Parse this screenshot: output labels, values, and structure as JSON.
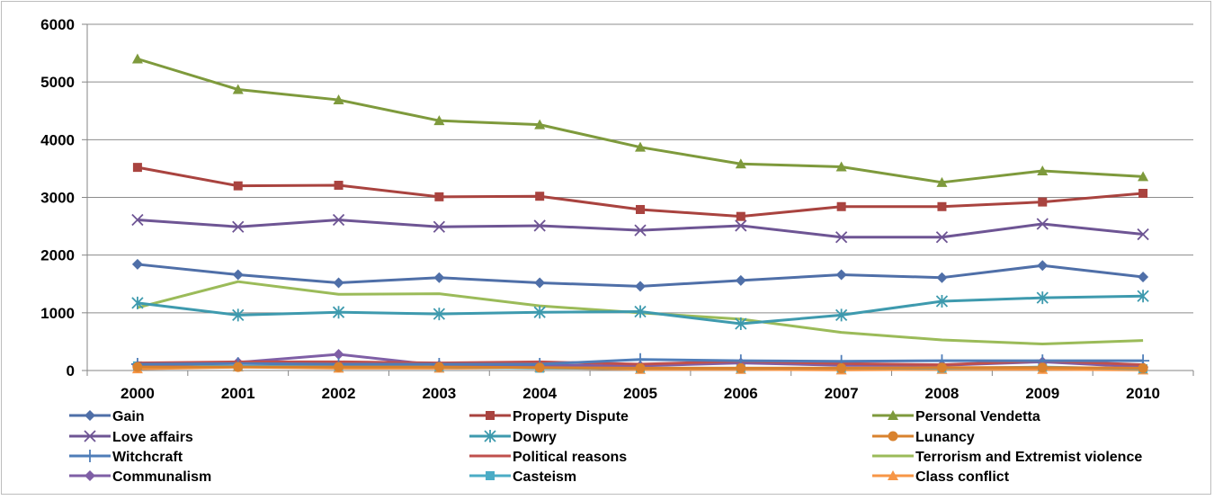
{
  "chart_data": {
    "type": "line",
    "title": "",
    "xlabel": "",
    "ylabel": "",
    "categories": [
      "2000",
      "2001",
      "2002",
      "2003",
      "2004",
      "2005",
      "2006",
      "2007",
      "2008",
      "2009",
      "2010"
    ],
    "ylim": [
      0,
      6000
    ],
    "yticks": [
      0,
      1000,
      2000,
      3000,
      4000,
      5000,
      6000
    ],
    "grid": true,
    "legend_position": "bottom",
    "series": [
      {
        "name": "Gain",
        "color": "#4F6FA8",
        "marker": "diamond",
        "values": [
          1840,
          1660,
          1520,
          1610,
          1520,
          1460,
          1560,
          1660,
          1610,
          1820,
          1620
        ]
      },
      {
        "name": "Property Dispute",
        "color": "#A9433F",
        "marker": "square",
        "values": [
          3520,
          3200,
          3210,
          3010,
          3020,
          2790,
          2670,
          2840,
          2840,
          2920,
          3070
        ]
      },
      {
        "name": "Personal Vendetta",
        "color": "#7E9A3C",
        "marker": "triangle",
        "values": [
          5400,
          4870,
          4690,
          4330,
          4260,
          3870,
          3580,
          3530,
          3260,
          3460,
          3360
        ]
      },
      {
        "name": "Love affairs",
        "color": "#6E5594",
        "marker": "x",
        "values": [
          2610,
          2490,
          2610,
          2490,
          2510,
          2430,
          2510,
          2310,
          2310,
          2540,
          2360
        ]
      },
      {
        "name": "Dowry",
        "color": "#3E9AAE",
        "marker": "star",
        "values": [
          1170,
          960,
          1010,
          980,
          1010,
          1020,
          810,
          960,
          1200,
          1260,
          1290
        ]
      },
      {
        "name": "Lunancy",
        "color": "#D9822E",
        "marker": "circle",
        "values": [
          60,
          60,
          60,
          60,
          50,
          40,
          40,
          40,
          50,
          50,
          40
        ]
      },
      {
        "name": "Witchcraft",
        "color": "#4F7DB8",
        "marker": "plus",
        "values": [
          110,
          120,
          110,
          110,
          110,
          190,
          170,
          160,
          170,
          170,
          170
        ]
      },
      {
        "name": "Political reasons",
        "color": "#C0504D",
        "marker": "none",
        "values": [
          130,
          150,
          150,
          130,
          150,
          110,
          160,
          120,
          100,
          170,
          100
        ]
      },
      {
        "name": "Terrorism and Extremist violence",
        "color": "#9BBB59",
        "marker": "none",
        "values": [
          1090,
          1540,
          1320,
          1330,
          1120,
          1000,
          890,
          660,
          530,
          460,
          520
        ]
      },
      {
        "name": "Communalism",
        "color": "#7F5FA6",
        "marker": "diamond",
        "values": [
          80,
          140,
          280,
          90,
          90,
          80,
          130,
          90,
          90,
          150,
          60
        ]
      },
      {
        "name": "Casteism",
        "color": "#4BACC6",
        "marker": "square",
        "values": [
          80,
          70,
          70,
          60,
          40,
          40,
          40,
          40,
          40,
          60,
          30
        ]
      },
      {
        "name": "Class conflict",
        "color": "#F79646",
        "marker": "triangle",
        "values": [
          30,
          60,
          40,
          40,
          50,
          20,
          20,
          10,
          20,
          20,
          10
        ]
      }
    ]
  }
}
